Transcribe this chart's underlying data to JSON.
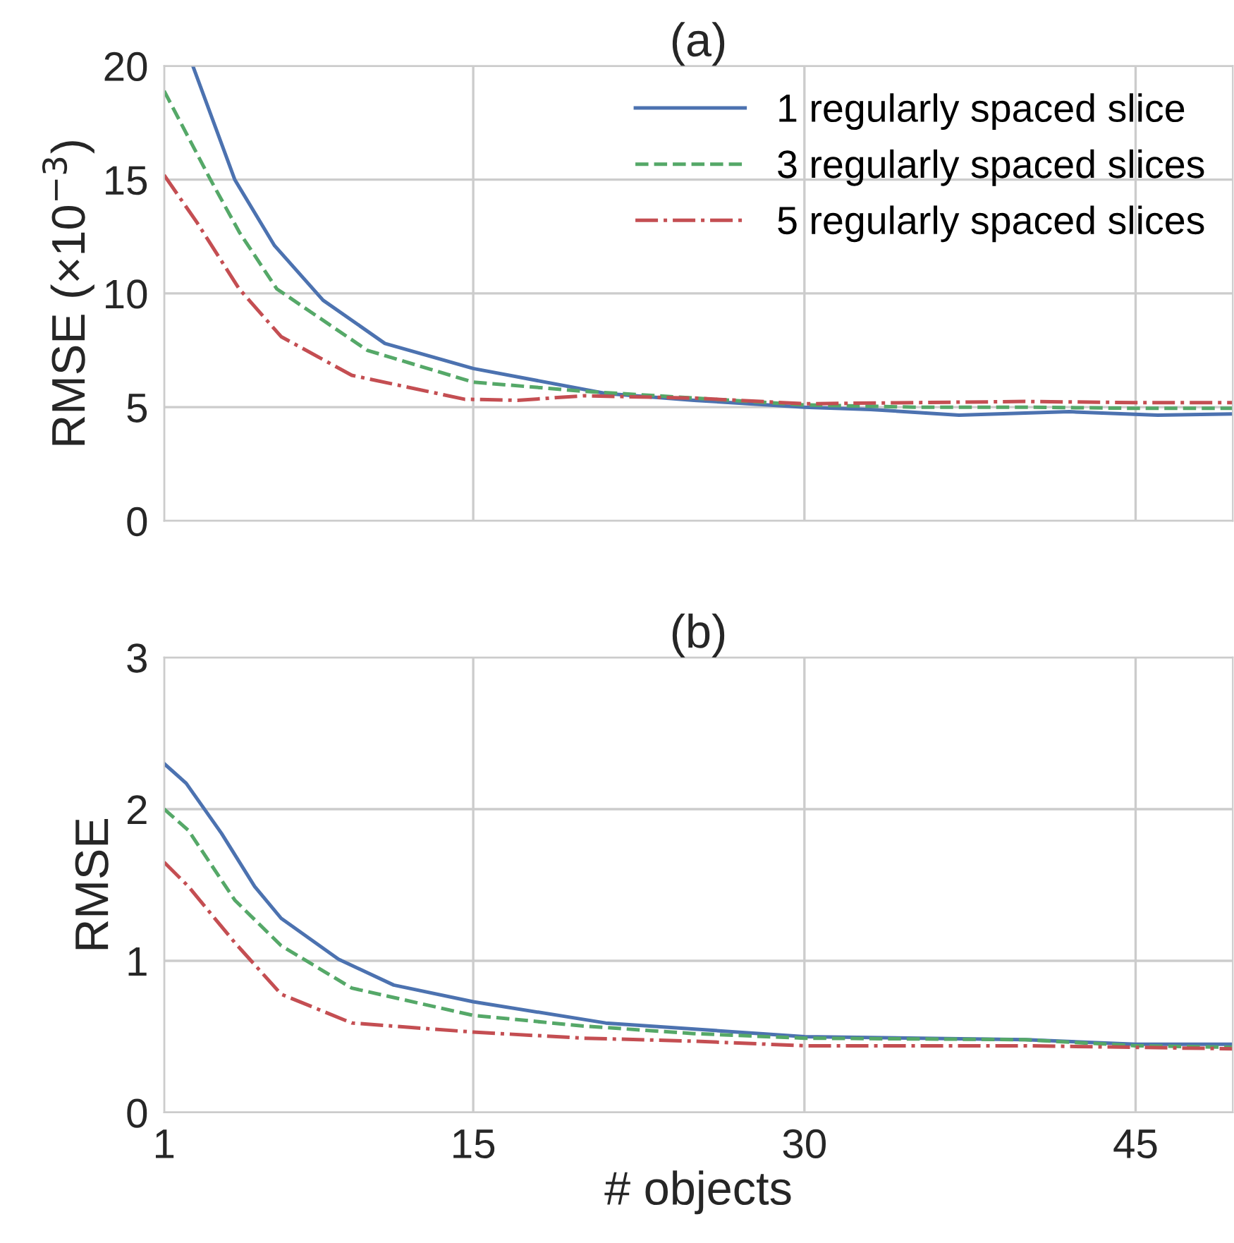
{
  "chart_data": [
    {
      "type": "line",
      "title": "(a)",
      "ylabel": "RMSE (×10$^{−3}$)",
      "xlim": [
        1,
        49.4
      ],
      "xticks": [
        1,
        15,
        30,
        45
      ],
      "ylim": [
        0,
        20
      ],
      "yticks": [
        0,
        5,
        10,
        15,
        20
      ],
      "grid": true,
      "legend": "top right",
      "tick_labels": "y",
      "series": [
        {
          "name": "1 regularly spaced slice",
          "color": "#4c72b0",
          "line_style": "solid",
          "x": [
            2.3,
            4.2,
            6,
            8.2,
            11,
            15,
            21,
            25,
            30,
            33,
            37,
            42,
            46,
            49.4
          ],
          "values": [
            20,
            15.0,
            12.1,
            9.7,
            7.8,
            6.7,
            5.6,
            5.3,
            5.0,
            4.9,
            4.65,
            4.8,
            4.65,
            4.7
          ]
        },
        {
          "name": "3 regularly spaced slices",
          "color": "#55a868",
          "line_style": "dashed",
          "x": [
            1,
            3.1,
            4.4,
            6.1,
            10.2,
            15,
            20,
            25,
            30,
            35,
            40,
            45,
            49.4
          ],
          "values": [
            18.9,
            15.0,
            12.7,
            10.2,
            7.5,
            6.1,
            5.7,
            5.4,
            5.1,
            5.0,
            5.0,
            4.95,
            4.95
          ]
        },
        {
          "name": "5 regularly spaced slices",
          "color": "#c44e52",
          "line_style": "dashdot",
          "x": [
            1,
            2.5,
            4.4,
            6.3,
            9.5,
            14.6,
            17,
            20,
            25,
            30,
            35,
            40,
            45,
            49.4
          ],
          "values": [
            15.2,
            13.1,
            10.2,
            8.1,
            6.4,
            5.35,
            5.3,
            5.5,
            5.4,
            5.15,
            5.2,
            5.25,
            5.2,
            5.2
          ]
        }
      ]
    },
    {
      "type": "line",
      "title": "(b)",
      "ylabel": "RMSE",
      "xlabel": "# objects",
      "xlim": [
        1,
        49.4
      ],
      "xticks": [
        1,
        15,
        30,
        45
      ],
      "ylim": [
        0,
        3
      ],
      "yticks": [
        0,
        1,
        2,
        3
      ],
      "grid": true,
      "series": [
        {
          "color": "#4c72b0",
          "line_style": "solid",
          "x": [
            1,
            2,
            3.6,
            5.1,
            6.3,
            8.9,
            11.4,
            15,
            21,
            30,
            40,
            45,
            49.4
          ],
          "values": [
            2.3,
            2.17,
            1.84,
            1.49,
            1.28,
            1.01,
            0.84,
            0.73,
            0.59,
            0.5,
            0.48,
            0.45,
            0.45
          ]
        },
        {
          "color": "#55a868",
          "line_style": "dashed",
          "x": [
            1,
            2.1,
            4.2,
            6.3,
            9.5,
            15,
            20,
            25,
            30,
            40,
            45,
            49.4
          ],
          "values": [
            2.0,
            1.86,
            1.4,
            1.1,
            0.82,
            0.64,
            0.57,
            0.52,
            0.49,
            0.48,
            0.44,
            0.43
          ]
        },
        {
          "color": "#c44e52",
          "line_style": "dashdot",
          "x": [
            1,
            2.1,
            4.2,
            6.3,
            9.5,
            15,
            20,
            25,
            30,
            40,
            49.4
          ],
          "values": [
            1.65,
            1.49,
            1.12,
            0.78,
            0.59,
            0.53,
            0.49,
            0.47,
            0.44,
            0.44,
            0.42
          ]
        }
      ]
    }
  ]
}
